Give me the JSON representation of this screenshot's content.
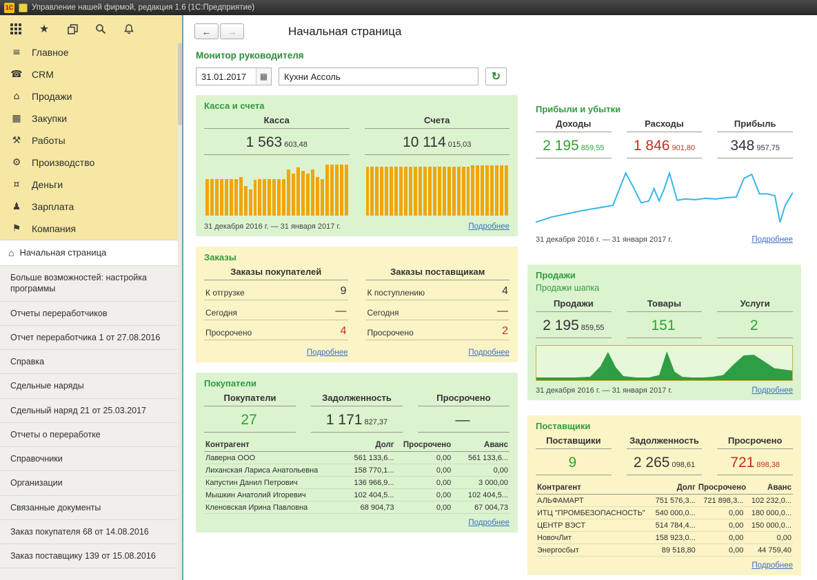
{
  "titlebar": {
    "logo": "1С",
    "title": "Управление нашей фирмой, редакция 1.6  (1С:Предприятие)"
  },
  "colors": {
    "accent_green": "#2e9b3c",
    "value_green": "#2fa32f",
    "negative_red": "#c2301f",
    "bar_orange": "#f2a50a",
    "line_blue": "#35b6e8",
    "area_green": "#2d9e43",
    "link_blue": "#3b6fc4",
    "sidebar_yellow": "#f6e8a4",
    "panel_green": "#dcf3d0",
    "panel_yellow": "#fbf4c7"
  },
  "sidebar": {
    "toolbar_icons": [
      "apps-grid-icon",
      "favorites-star-icon",
      "recent-windows-icon",
      "search-icon",
      "notifications-bell-icon"
    ],
    "menu": [
      {
        "label": "Главное",
        "icon": "main-sections-icon"
      },
      {
        "label": "CRM",
        "icon": "crm-icon"
      },
      {
        "label": "Продажи",
        "icon": "sales-icon"
      },
      {
        "label": "Закупки",
        "icon": "purchases-icon"
      },
      {
        "label": "Работы",
        "icon": "works-icon"
      },
      {
        "label": "Производство",
        "icon": "production-icon"
      },
      {
        "label": "Деньги",
        "icon": "money-icon"
      },
      {
        "label": "Зарплата",
        "icon": "salary-icon"
      },
      {
        "label": "Компания",
        "icon": "company-icon"
      }
    ],
    "nav": [
      {
        "label": "Начальная страница",
        "active": true
      },
      {
        "label": "Больше возможностей: настройка программы"
      },
      {
        "label": "Отчеты переработчиков"
      },
      {
        "label": "Отчет переработчика 1 от 27.08.2016"
      },
      {
        "label": "Справка"
      },
      {
        "label": "Сдельные наряды"
      },
      {
        "label": "Сдельный наряд 21 от 25.03.2017"
      },
      {
        "label": "Отчеты о переработке"
      },
      {
        "label": "Справочники"
      },
      {
        "label": "Организации"
      },
      {
        "label": "Связанные документы"
      },
      {
        "label": "Заказ покупателя 68 от 14.08.2016"
      },
      {
        "label": "Заказ поставщику 139 от 15.08.2016"
      }
    ]
  },
  "header": {
    "back": "←",
    "forward": "→",
    "page_title": "Начальная страница"
  },
  "toolbar": {
    "section_title": "Монитор руководителя",
    "date_value": "31.01.2017",
    "company_value": "Кухни Ассоль",
    "calendar_glyph": "▦",
    "refresh_glyph": "↻"
  },
  "panels": {
    "cash": {
      "title": "Касса и счета",
      "columns": [
        {
          "label": "Касса",
          "main": "1 563",
          "frac": "603,48",
          "color": "dark"
        },
        {
          "label": "Счета",
          "main": "10 114",
          "frac": "015,03",
          "color": "dark"
        }
      ],
      "period": "31 декабря 2016 г. — 31 января 2017 г.",
      "more": "Подробнее"
    },
    "pnl": {
      "title": "Прибыли и убытки",
      "columns": [
        {
          "label": "Доходы",
          "main": "2 195",
          "frac": "859,55",
          "color": "green"
        },
        {
          "label": "Расходы",
          "main": "1 846",
          "frac": "901,80",
          "color": "red"
        },
        {
          "label": "Прибыль",
          "main": "348",
          "frac": "957,75",
          "color": "dark"
        }
      ],
      "period": "31 декабря 2016 г. — 31 января 2017 г.",
      "more": "Подробнее"
    },
    "orders": {
      "title": "Заказы",
      "groups": [
        {
          "header": "Заказы покупателей",
          "rows": [
            {
              "label": "К отгрузке",
              "value": "9",
              "color": "dark"
            },
            {
              "label": "Сегодня",
              "value": "—",
              "color": "dark"
            },
            {
              "label": "Просрочено",
              "value": "4",
              "color": "red"
            }
          ],
          "more": "Подробнее"
        },
        {
          "header": "Заказы поставщикам",
          "rows": [
            {
              "label": "К поступлению",
              "value": "4",
              "color": "dark"
            },
            {
              "label": "Сегодня",
              "value": "—",
              "color": "dark"
            },
            {
              "label": "Просрочено",
              "value": "2",
              "color": "red"
            }
          ],
          "more": "Подробнее"
        }
      ]
    },
    "sales": {
      "title": "Продажи",
      "subtitle": "Продажи шапка",
      "columns": [
        {
          "label": "Продажи",
          "main": "2 195",
          "frac": "859,55",
          "color": "dark"
        },
        {
          "label": "Товары",
          "main": "151",
          "frac": "",
          "color": "green"
        },
        {
          "label": "Услуги",
          "main": "2",
          "frac": "",
          "color": "green"
        }
      ],
      "period": "31 декабря 2016 г. — 31 января 2017 г.",
      "more": "Подробнее"
    },
    "customers": {
      "title": "Покупатели",
      "columns": [
        {
          "label": "Покупатели",
          "main": "27",
          "frac": "",
          "color": "green"
        },
        {
          "label": "Задолженность",
          "main": "1 171",
          "frac": "827,37",
          "color": "dark"
        },
        {
          "label": "Просрочено",
          "main": "—",
          "frac": "",
          "color": "dark"
        }
      ],
      "table": {
        "headers": [
          "Контрагент",
          "Долг",
          "Просрочено",
          "Аванс"
        ],
        "rows": [
          {
            "name": "Лаверна ООО",
            "debt": "561 133,6...",
            "overdue": "0,00",
            "advance": "561 133,6..."
          },
          {
            "name": "Лиханская Лариса Анатольевна",
            "debt": "158 770,1...",
            "overdue": "0,00",
            "advance": "0,00"
          },
          {
            "name": "Капустин Данил Петрович",
            "debt": "136 966,9...",
            "overdue": "0,00",
            "advance": "3 000,00"
          },
          {
            "name": "Мышкин Анатолий Игоревич",
            "debt": "102 404,5...",
            "overdue": "0,00",
            "advance": "102 404,5..."
          },
          {
            "name": "Кленовская Ирина Павловна",
            "debt": "68 904,73",
            "overdue": "0,00",
            "advance": "67 004,73"
          }
        ]
      },
      "more": "Подробнее"
    },
    "suppliers": {
      "title": "Поставщики",
      "columns": [
        {
          "label": "Поставщики",
          "main": "9",
          "frac": "",
          "color": "green"
        },
        {
          "label": "Задолженность",
          "main": "2 265",
          "frac": "098,61",
          "color": "dark"
        },
        {
          "label": "Просрочено",
          "main": "721",
          "frac": "898,38",
          "color": "red"
        }
      ],
      "table": {
        "headers": [
          "Контрагент",
          "Долг",
          "Просрочено",
          "Аванс"
        ],
        "rows": [
          {
            "name": "АЛЬФАМАРТ",
            "debt": "751 576,3...",
            "overdue": "721 898,3...",
            "advance": "102 232,0..."
          },
          {
            "name": "ИТЦ \"ПРОМБЕЗОПАСНОСТЬ\"",
            "debt": "540 000,0...",
            "overdue": "0,00",
            "advance": "180 000,0..."
          },
          {
            "name": "ЦЕНТР ВЭСТ",
            "debt": "514 784,4...",
            "overdue": "0,00",
            "advance": "150 000,0..."
          },
          {
            "name": "НовочЛит",
            "debt": "158 923,0...",
            "overdue": "0,00",
            "advance": "0,00"
          },
          {
            "name": "Энергосбыт",
            "debt": "89 518,80",
            "overdue": "0,00",
            "advance": "44 759,40"
          }
        ]
      },
      "more": "Подробнее"
    }
  },
  "chart_data": [
    {
      "type": "bar",
      "name": "Касса",
      "unit": "relative-height-0-1",
      "values": [
        0.7,
        0.7,
        0.7,
        0.7,
        0.7,
        0.7,
        0.7,
        0.74,
        0.56,
        0.5,
        0.68,
        0.7,
        0.7,
        0.7,
        0.7,
        0.7,
        0.7,
        0.88,
        0.8,
        0.92,
        0.86,
        0.8,
        0.88,
        0.74,
        0.7,
        0.97,
        0.97,
        0.97,
        0.97,
        0.97
      ]
    },
    {
      "type": "bar",
      "name": "Счета",
      "unit": "relative-height-0-1",
      "values": [
        0.94,
        0.94,
        0.94,
        0.94,
        0.94,
        0.94,
        0.94,
        0.94,
        0.94,
        0.94,
        0.94,
        0.94,
        0.94,
        0.94,
        0.94,
        0.94,
        0.94,
        0.94,
        0.94,
        0.94,
        0.94,
        0.94,
        0.96,
        0.96,
        0.96,
        0.96,
        0.96,
        0.96,
        0.96,
        0.96
      ]
    },
    {
      "type": "line",
      "name": "Прибыли и убытки",
      "unit": "svg-percent-xy",
      "points": [
        [
          0,
          88
        ],
        [
          6,
          80
        ],
        [
          12,
          75
        ],
        [
          18,
          70
        ],
        [
          24,
          66
        ],
        [
          30,
          62
        ],
        [
          33,
          32
        ],
        [
          35,
          12
        ],
        [
          38,
          34
        ],
        [
          41,
          58
        ],
        [
          44,
          55
        ],
        [
          46,
          36
        ],
        [
          48,
          55
        ],
        [
          50,
          36
        ],
        [
          52,
          12
        ],
        [
          55,
          54
        ],
        [
          58,
          52
        ],
        [
          62,
          53
        ],
        [
          66,
          51
        ],
        [
          70,
          52
        ],
        [
          74,
          50
        ],
        [
          78,
          49
        ],
        [
          81,
          20
        ],
        [
          84,
          14
        ],
        [
          87,
          44
        ],
        [
          90,
          44
        ],
        [
          93,
          47
        ],
        [
          95,
          88
        ],
        [
          97,
          62
        ],
        [
          100,
          42
        ]
      ]
    },
    {
      "type": "area",
      "name": "Продажи",
      "unit": "svg-percent-xy",
      "points": [
        [
          0,
          92
        ],
        [
          8,
          92
        ],
        [
          15,
          92
        ],
        [
          21,
          90
        ],
        [
          25,
          60
        ],
        [
          28,
          18
        ],
        [
          31,
          62
        ],
        [
          34,
          88
        ],
        [
          39,
          92
        ],
        [
          44,
          92
        ],
        [
          48,
          85
        ],
        [
          51,
          16
        ],
        [
          54,
          75
        ],
        [
          57,
          90
        ],
        [
          61,
          92
        ],
        [
          65,
          92
        ],
        [
          69,
          90
        ],
        [
          73,
          85
        ],
        [
          77,
          55
        ],
        [
          81,
          28
        ],
        [
          85,
          26
        ],
        [
          89,
          45
        ],
        [
          93,
          65
        ],
        [
          100,
          72
        ]
      ]
    }
  ]
}
